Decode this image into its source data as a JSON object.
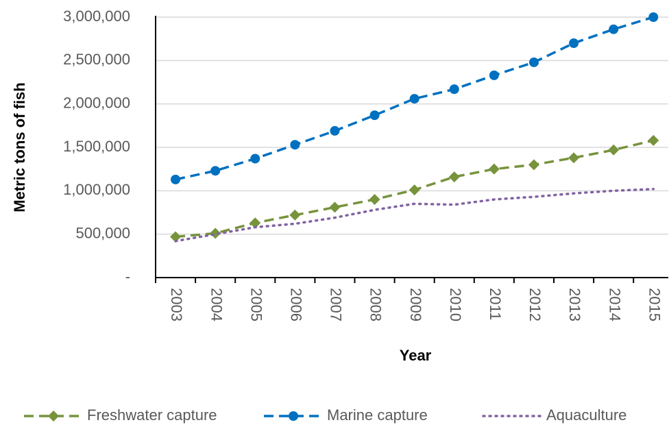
{
  "chart_data": {
    "type": "line",
    "x_label": "Year",
    "y_label": "Metric tons of fish",
    "categories": [
      "2003",
      "2004",
      "2005",
      "2006",
      "2007",
      "2008",
      "2009",
      "2010",
      "2011",
      "2012",
      "2013",
      "2014",
      "2015"
    ],
    "series": [
      {
        "name": "Freshwater capture",
        "color": "#77933c",
        "dash": "dashed",
        "marker": "diamond",
        "values": [
          470000,
          510000,
          630000,
          720000,
          810000,
          900000,
          1010000,
          1160000,
          1250000,
          1300000,
          1380000,
          1470000,
          1580000
        ]
      },
      {
        "name": "Marine capture",
        "color": "#0070c0",
        "dash": "dashed",
        "marker": "circle",
        "values": [
          1130000,
          1230000,
          1370000,
          1530000,
          1690000,
          1870000,
          2060000,
          2170000,
          2330000,
          2480000,
          2700000,
          2860000,
          3000000
        ]
      },
      {
        "name": "Aquaculture",
        "color": "#8064a2",
        "dash": "dotted",
        "marker": "none",
        "values": [
          420000,
          500000,
          580000,
          620000,
          690000,
          780000,
          850000,
          840000,
          900000,
          930000,
          970000,
          1000000,
          1020000
        ]
      }
    ],
    "ylim": [
      0,
      3000000
    ],
    "yticks": [
      {
        "value": 0,
        "label": "-"
      },
      {
        "value": 500000,
        "label": "500,000"
      },
      {
        "value": 1000000,
        "label": "1,000,000"
      },
      {
        "value": 1500000,
        "label": "1,500,000"
      },
      {
        "value": 2000000,
        "label": "2,000,000"
      },
      {
        "value": 2500000,
        "label": "2,500,000"
      },
      {
        "value": 3000000,
        "label": "3,000,000"
      }
    ],
    "grid": true,
    "legend": "bottom"
  }
}
